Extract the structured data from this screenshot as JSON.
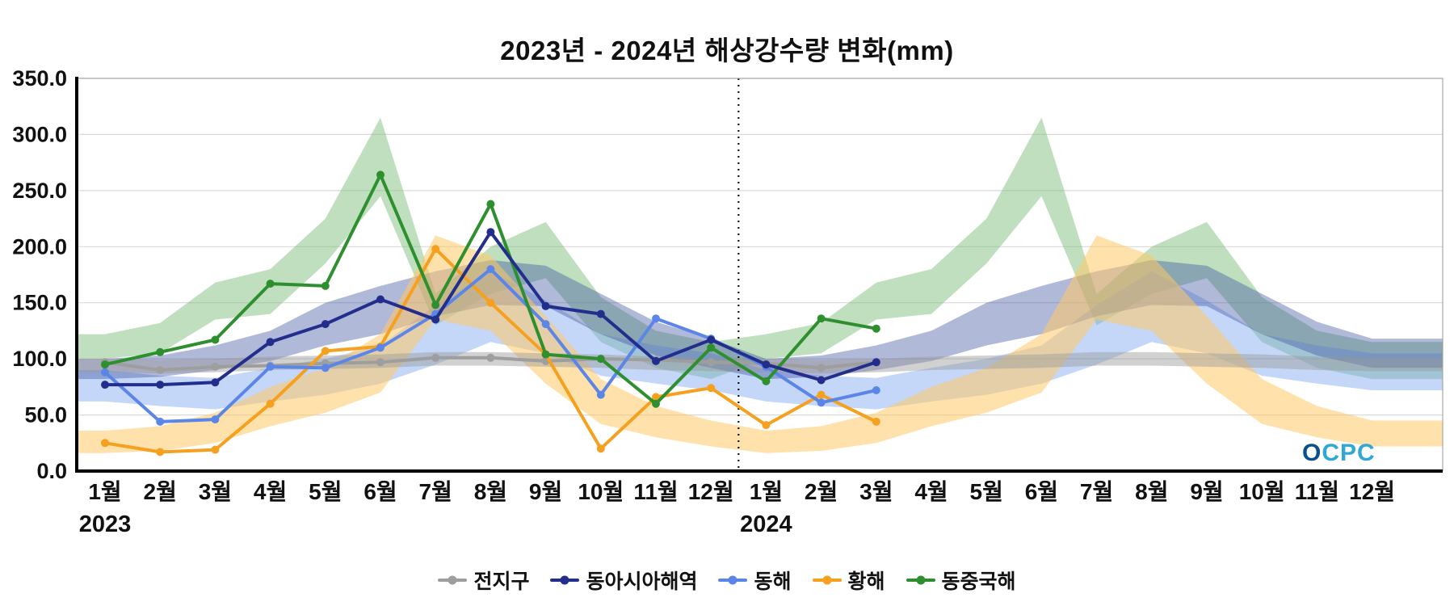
{
  "title": "2023년 - 2024년 해상강수량 변화(mm)",
  "watermark": {
    "label": "OCPC"
  },
  "chart_data": {
    "type": "line",
    "title": "2023년 - 2024년 해상강수량 변화(mm)",
    "unit": "mm",
    "ylim": [
      0,
      350
    ],
    "y_ticks": [
      "0.0",
      "50.0",
      "100.0",
      "150.0",
      "200.0",
      "250.0",
      "300.0",
      "350.0"
    ],
    "x_months": [
      "1월",
      "2월",
      "3월",
      "4월",
      "5월",
      "6월",
      "7월",
      "8월",
      "9월",
      "10월",
      "11월",
      "12월",
      "1월",
      "2월",
      "3월",
      "4월",
      "5월",
      "6월",
      "7월",
      "8월",
      "9월",
      "10월",
      "11월",
      "12월"
    ],
    "year_labels": [
      {
        "label": "2023",
        "month_index": 0
      },
      {
        "label": "2024",
        "month_index": 12
      }
    ],
    "separator_between": [
      11,
      12
    ],
    "grid": true,
    "legend_position": "bottom",
    "band_draw_order": [
      4,
      2,
      1,
      3,
      0
    ],
    "line_draw_order": [
      0,
      3,
      2,
      4,
      1
    ],
    "series": [
      {
        "name": "전지구",
        "color": "#9e9e9e",
        "band_color": "#9a9a9a",
        "band_opacity": 0.45,
        "values": [
          97,
          90,
          93,
          94,
          96,
          97,
          101,
          101,
          98,
          100,
          99,
          97,
          96,
          92,
          97
        ],
        "band_low": [
          88,
          87,
          88,
          90,
          91,
          92,
          94,
          94,
          93,
          92,
          90,
          89
        ],
        "band_high": [
          100,
          99,
          100,
          102,
          103,
          104,
          106,
          106,
          105,
          104,
          102,
          101
        ]
      },
      {
        "name": "동아시아해역",
        "color": "#232e8c",
        "band_color": "#3d4fa0",
        "band_opacity": 0.4,
        "values": [
          77,
          77,
          79,
          115,
          131,
          153,
          135,
          213,
          147,
          140,
          98,
          117,
          95,
          81,
          97
        ],
        "band_low": [
          82,
          84,
          90,
          98,
          112,
          122,
          138,
          148,
          147,
          122,
          103,
          92
        ],
        "band_high": [
          100,
          103,
          112,
          125,
          150,
          165,
          178,
          188,
          183,
          158,
          133,
          118
        ]
      },
      {
        "name": "동해",
        "color": "#5b86e8",
        "band_color": "#7da7f0",
        "band_opacity": 0.45,
        "values": [
          88,
          44,
          46,
          93,
          92,
          110,
          140,
          180,
          131,
          68,
          136,
          118,
          93,
          61,
          72
        ],
        "band_low": [
          62,
          58,
          55,
          62,
          68,
          78,
          95,
          115,
          105,
          85,
          78,
          72
        ],
        "band_high": [
          90,
          85,
          83,
          92,
          100,
          112,
          148,
          178,
          152,
          122,
          112,
          105
        ]
      },
      {
        "name": "황해",
        "color": "#f5a01e",
        "band_color": "#ffc966",
        "band_opacity": 0.55,
        "values": [
          25,
          17,
          19,
          60,
          107,
          111,
          198,
          150,
          104,
          20,
          66,
          74,
          41,
          68,
          44
        ],
        "band_low": [
          16,
          18,
          25,
          40,
          52,
          70,
          135,
          125,
          78,
          42,
          30,
          22
        ],
        "band_high": [
          36,
          40,
          52,
          75,
          92,
          122,
          210,
          192,
          138,
          82,
          58,
          45
        ]
      },
      {
        "name": "동중국해",
        "color": "#2e8f2e",
        "band_color": "#7fbf7f",
        "band_opacity": 0.5,
        "values": [
          95,
          106,
          117,
          167,
          165,
          264,
          148,
          238,
          104,
          100,
          60,
          110,
          80,
          136,
          127
        ],
        "band_low": [
          100,
          105,
          135,
          140,
          185,
          245,
          130,
          158,
          172,
          115,
          92,
          82
        ],
        "band_high": [
          122,
          132,
          168,
          180,
          225,
          315,
          158,
          200,
          222,
          155,
          125,
          115
        ]
      }
    ]
  }
}
